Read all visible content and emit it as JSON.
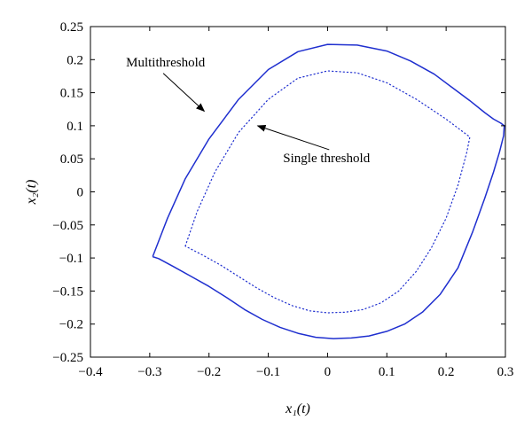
{
  "chart_data": {
    "type": "line",
    "xlabel": "x₁(t)",
    "ylabel": "x₂(t)",
    "xlim": [
      -0.4,
      0.3
    ],
    "ylim": [
      -0.25,
      0.25
    ],
    "x_ticks": [
      -0.4,
      -0.3,
      -0.2,
      -0.1,
      0,
      0.1,
      0.2,
      0.3
    ],
    "y_ticks": [
      -0.25,
      -0.2,
      -0.15,
      -0.1,
      -0.05,
      0,
      0.05,
      0.1,
      0.15,
      0.2,
      0.25
    ],
    "x_tick_labels": [
      "−0.4",
      "−0.3",
      "−0.2",
      "−0.1",
      "0",
      "0.1",
      "0.2",
      "0.3"
    ],
    "y_tick_labels": [
      "−0.25",
      "−0.2",
      "−0.15",
      "−0.1",
      "−0.05",
      "0",
      "0.05",
      "0.1",
      "0.15",
      "0.2",
      "0.25"
    ],
    "grid": false,
    "series": [
      {
        "color": "#1f2fcf",
        "style": "solid",
        "x": [
          -0.295,
          -0.27,
          -0.24,
          -0.2,
          -0.15,
          -0.1,
          -0.05,
          0.0,
          0.05,
          0.1,
          0.14,
          0.18,
          0.21,
          0.24,
          0.265,
          0.28,
          0.292,
          0.298,
          0.297,
          0.29,
          0.28,
          0.265,
          0.245,
          0.22,
          0.19,
          0.16,
          0.13,
          0.1,
          0.07,
          0.04,
          0.01,
          -0.02,
          -0.05,
          -0.08,
          -0.11,
          -0.14,
          -0.17,
          -0.2,
          -0.23,
          -0.26,
          -0.285,
          -0.295
        ],
        "y": [
          -0.098,
          -0.04,
          0.02,
          0.08,
          0.14,
          0.185,
          0.212,
          0.223,
          0.222,
          0.213,
          0.198,
          0.178,
          0.158,
          0.138,
          0.12,
          0.11,
          0.104,
          0.1,
          0.085,
          0.06,
          0.03,
          -0.01,
          -0.06,
          -0.115,
          -0.155,
          -0.182,
          -0.2,
          -0.211,
          -0.218,
          -0.221,
          -0.222,
          -0.22,
          -0.214,
          -0.205,
          -0.193,
          -0.178,
          -0.16,
          -0.143,
          -0.128,
          -0.113,
          -0.101,
          -0.098
        ]
      },
      {
        "color": "#1f2fcf",
        "style": "dotted",
        "x": [
          -0.24,
          -0.22,
          -0.19,
          -0.15,
          -0.1,
          -0.05,
          0.0,
          0.05,
          0.1,
          0.15,
          0.2,
          0.24,
          0.235,
          0.22,
          0.2,
          0.175,
          0.15,
          0.12,
          0.09,
          0.06,
          0.03,
          0.0,
          -0.03,
          -0.06,
          -0.09,
          -0.12,
          -0.15,
          -0.18,
          -0.21,
          -0.24
        ],
        "y": [
          -0.082,
          -0.03,
          0.03,
          0.09,
          0.14,
          0.172,
          0.183,
          0.18,
          0.165,
          0.14,
          0.11,
          0.083,
          0.06,
          0.01,
          -0.04,
          -0.085,
          -0.12,
          -0.15,
          -0.168,
          -0.178,
          -0.182,
          -0.183,
          -0.18,
          -0.172,
          -0.16,
          -0.145,
          -0.128,
          -0.111,
          -0.096,
          -0.082
        ]
      }
    ],
    "annotations": [
      {
        "text": "Multithreshold",
        "xy": [
          -0.208,
          0.122
        ],
        "xytext": [
          -0.34,
          0.19
        ]
      },
      {
        "text": "Single threshold",
        "xy": [
          -0.118,
          0.1
        ],
        "xytext": [
          -0.075,
          0.045
        ]
      }
    ]
  }
}
